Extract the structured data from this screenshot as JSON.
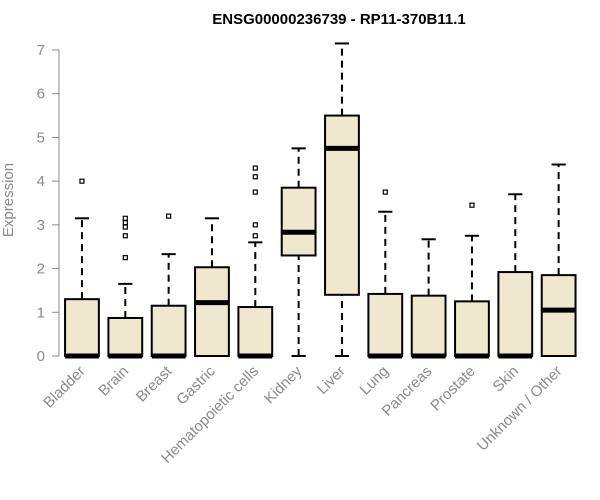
{
  "chart_data": {
    "type": "boxplot",
    "title": "ENSG00000236739 - RP11-370B11.1",
    "xlabel": "",
    "ylabel": "Expression",
    "ylim": [
      0,
      7
    ],
    "yticks": [
      0,
      1,
      2,
      3,
      4,
      5,
      6,
      7
    ],
    "grid": false,
    "box_color": "#efe8cf",
    "categories": [
      "Bladder",
      "Brain",
      "Breast",
      "Gastric",
      "Hematopoietic cells",
      "Kidney",
      "Liver",
      "Lung",
      "Pancreas",
      "Prostate",
      "Skin",
      "Unknown / Other"
    ],
    "boxes": [
      {
        "category": "Bladder",
        "min": 0,
        "q1": 0,
        "median": 0,
        "q3": 1.3,
        "max": 3.15,
        "outliers": [
          4.0
        ]
      },
      {
        "category": "Brain",
        "min": 0,
        "q1": 0,
        "median": 0,
        "q3": 0.87,
        "max": 1.65,
        "outliers": [
          2.25,
          2.75,
          2.95,
          3.05,
          3.15
        ]
      },
      {
        "category": "Breast",
        "min": 0,
        "q1": 0,
        "median": 0,
        "q3": 1.15,
        "max": 2.33,
        "outliers": [
          3.2
        ]
      },
      {
        "category": "Gastric",
        "min": 0,
        "q1": 0,
        "median": 1.22,
        "q3": 2.03,
        "max": 3.15,
        "outliers": []
      },
      {
        "category": "Hematopoietic cells",
        "min": 0,
        "q1": 0,
        "median": 0,
        "q3": 1.12,
        "max": 2.6,
        "outliers": [
          2.75,
          3.0,
          3.75,
          4.1,
          4.3
        ]
      },
      {
        "category": "Kidney",
        "min": 0,
        "q1": 2.3,
        "median": 2.83,
        "q3": 3.85,
        "max": 4.75,
        "outliers": []
      },
      {
        "category": "Liver",
        "min": 0,
        "q1": 1.4,
        "median": 4.75,
        "q3": 5.5,
        "max": 7.15,
        "outliers": []
      },
      {
        "category": "Lung",
        "min": 0,
        "q1": 0,
        "median": 0,
        "q3": 1.42,
        "max": 3.3,
        "outliers": [
          3.75
        ]
      },
      {
        "category": "Pancreas",
        "min": 0,
        "q1": 0,
        "median": 0,
        "q3": 1.38,
        "max": 2.67,
        "outliers": []
      },
      {
        "category": "Prostate",
        "min": 0,
        "q1": 0,
        "median": 0,
        "q3": 1.25,
        "max": 2.75,
        "outliers": [
          3.45
        ]
      },
      {
        "category": "Skin",
        "min": 0,
        "q1": 0,
        "median": 0,
        "q3": 1.92,
        "max": 3.7,
        "outliers": []
      },
      {
        "category": "Unknown / Other",
        "min": 0,
        "q1": 0,
        "median": 1.05,
        "q3": 1.85,
        "max": 4.38,
        "outliers": []
      }
    ]
  }
}
